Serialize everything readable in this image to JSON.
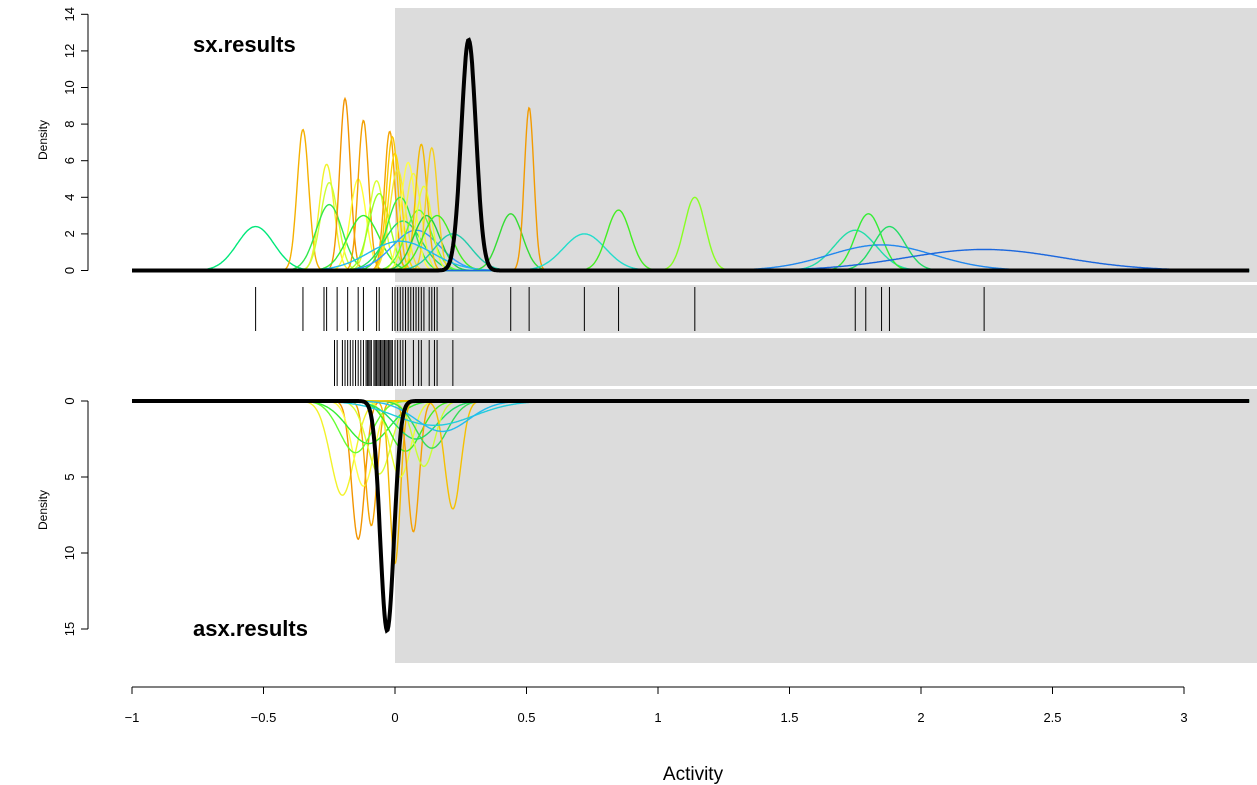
{
  "chart_data": {
    "type": "line",
    "xlabel": "Activity",
    "x_ticks": [
      -1,
      -0.5,
      0,
      0.5,
      1,
      1.5,
      2,
      2.5,
      3
    ],
    "x_tick_labels": [
      "−1",
      "−0.5",
      "0",
      "0.5",
      "1",
      "1.5",
      "2",
      "2.5",
      "3"
    ],
    "xlim": [
      -1,
      3.25
    ],
    "shaded_region_from_x": 0,
    "shade_color": "#dcdcdc",
    "top_panel": {
      "label": "sx.results",
      "ylabel": "Density",
      "ylim": [
        0,
        14
      ],
      "y_ticks": [
        0,
        2,
        4,
        6,
        8,
        10,
        12,
        14
      ],
      "y_tick_labels": [
        "0",
        "2",
        "4",
        "6",
        "8",
        "10",
        "12",
        "14"
      ],
      "rug": [
        -0.53,
        -0.35,
        -0.27,
        -0.26,
        -0.22,
        -0.18,
        -0.14,
        -0.12,
        -0.07,
        -0.06,
        -0.01,
        0.0,
        0.01,
        0.02,
        0.03,
        0.04,
        0.05,
        0.06,
        0.07,
        0.08,
        0.09,
        0.1,
        0.11,
        0.13,
        0.14,
        0.15,
        0.16,
        0.22,
        0.44,
        0.51,
        0.72,
        0.85,
        1.14,
        1.75,
        1.79,
        1.85,
        1.88,
        2.24
      ],
      "overall": {
        "mean": 0.28,
        "peak": 12.6,
        "sd": 0.028,
        "color": "#000000"
      },
      "curves": [
        {
          "mean": -0.53,
          "peak": 2.4,
          "sd": 0.07,
          "color": "#00e87a"
        },
        {
          "mean": -0.35,
          "peak": 7.7,
          "sd": 0.022,
          "color": "#f5b000"
        },
        {
          "mean": -0.26,
          "peak": 5.8,
          "sd": 0.028,
          "color": "#f2f22a"
        },
        {
          "mean": -0.25,
          "peak": 4.8,
          "sd": 0.033,
          "color": "#ccff33"
        },
        {
          "mean": -0.25,
          "peak": 3.6,
          "sd": 0.05,
          "color": "#33e84d"
        },
        {
          "mean": -0.19,
          "peak": 9.4,
          "sd": 0.02,
          "color": "#f29500"
        },
        {
          "mean": -0.14,
          "peak": 5.0,
          "sd": 0.03,
          "color": "#ffff33"
        },
        {
          "mean": -0.12,
          "peak": 8.2,
          "sd": 0.02,
          "color": "#f2a000"
        },
        {
          "mean": -0.07,
          "peak": 4.9,
          "sd": 0.03,
          "color": "#d9ff33"
        },
        {
          "mean": -0.06,
          "peak": 4.2,
          "sd": 0.04,
          "color": "#99ff22"
        },
        {
          "mean": -0.12,
          "peak": 3.0,
          "sd": 0.06,
          "color": "#33ee33"
        },
        {
          "mean": -0.02,
          "peak": 7.6,
          "sd": 0.02,
          "color": "#f5a300"
        },
        {
          "mean": -0.01,
          "peak": 7.3,
          "sd": 0.022,
          "color": "#f8c800"
        },
        {
          "mean": 0.0,
          "peak": 6.4,
          "sd": 0.025,
          "color": "#ffd700"
        },
        {
          "mean": 0.01,
          "peak": 5.5,
          "sd": 0.03,
          "color": "#f2e830"
        },
        {
          "mean": 0.02,
          "peak": 4.0,
          "sd": 0.05,
          "color": "#33ee44"
        },
        {
          "mean": 0.03,
          "peak": 2.7,
          "sd": 0.07,
          "color": "#22dd66"
        },
        {
          "mean": 0.05,
          "peak": 5.9,
          "sd": 0.028,
          "color": "#ffff44"
        },
        {
          "mean": 0.07,
          "peak": 5.3,
          "sd": 0.03,
          "color": "#f5f542"
        },
        {
          "mean": 0.08,
          "peak": 2.2,
          "sd": 0.09,
          "color": "#3399ff"
        },
        {
          "mean": 0.09,
          "peak": 3.3,
          "sd": 0.05,
          "color": "#66ff33"
        },
        {
          "mean": 0.1,
          "peak": 6.9,
          "sd": 0.022,
          "color": "#f2b800"
        },
        {
          "mean": 0.11,
          "peak": 4.6,
          "sd": 0.03,
          "color": "#eaff33"
        },
        {
          "mean": 0.12,
          "peak": 3.0,
          "sd": 0.05,
          "color": "#22cc44"
        },
        {
          "mean": 0.14,
          "peak": 6.7,
          "sd": 0.022,
          "color": "#f5d020"
        },
        {
          "mean": 0.16,
          "peak": 3.0,
          "sd": 0.055,
          "color": "#44ee22"
        },
        {
          "mean": 0.22,
          "peak": 2.0,
          "sd": 0.07,
          "color": "#22ccaa"
        },
        {
          "mean": 0.02,
          "peak": 1.6,
          "sd": 0.12,
          "color": "#22bbee"
        },
        {
          "mean": 0.44,
          "peak": 3.1,
          "sd": 0.045,
          "color": "#33dd33"
        },
        {
          "mean": 0.51,
          "peak": 8.9,
          "sd": 0.018,
          "color": "#f29b00"
        },
        {
          "mean": 0.72,
          "peak": 2.0,
          "sd": 0.08,
          "color": "#22ddcc"
        },
        {
          "mean": 0.85,
          "peak": 3.3,
          "sd": 0.045,
          "color": "#44ee22"
        },
        {
          "mean": 1.14,
          "peak": 4.0,
          "sd": 0.04,
          "color": "#88ff22"
        },
        {
          "mean": 1.75,
          "peak": 2.2,
          "sd": 0.08,
          "color": "#22ddaa"
        },
        {
          "mean": 1.8,
          "peak": 3.1,
          "sd": 0.05,
          "color": "#33ee33"
        },
        {
          "mean": 1.85,
          "peak": 1.4,
          "sd": 0.2,
          "color": "#2288ee"
        },
        {
          "mean": 1.88,
          "peak": 2.4,
          "sd": 0.06,
          "color": "#22dd66"
        },
        {
          "mean": 2.24,
          "peak": 1.15,
          "sd": 0.3,
          "color": "#1a66dd"
        }
      ]
    },
    "bottom_panel": {
      "label": "asx.results",
      "ylabel": "Density",
      "ylim": [
        0,
        15
      ],
      "y_ticks": [
        0,
        5,
        10,
        15
      ],
      "y_tick_labels": [
        "0",
        "5",
        "10",
        "15"
      ],
      "inverted": true,
      "rug": [
        -0.23,
        -0.22,
        -0.2,
        -0.19,
        -0.18,
        -0.17,
        -0.16,
        -0.15,
        -0.14,
        -0.13,
        -0.12,
        -0.11,
        -0.105,
        -0.1,
        -0.095,
        -0.09,
        -0.08,
        -0.075,
        -0.07,
        -0.065,
        -0.06,
        -0.055,
        -0.05,
        -0.045,
        -0.04,
        -0.035,
        -0.03,
        -0.025,
        -0.02,
        -0.015,
        -0.01,
        0.0,
        0.01,
        0.02,
        0.03,
        0.04,
        0.07,
        0.09,
        0.1,
        0.13,
        0.15,
        0.16,
        0.22
      ],
      "overall": {
        "mean": -0.03,
        "peak": 15.1,
        "sd": 0.026,
        "color": "#000000"
      },
      "curves": [
        {
          "mean": -0.2,
          "peak": 6.2,
          "sd": 0.045,
          "color": "#f2f22a"
        },
        {
          "mean": -0.14,
          "peak": 9.1,
          "sd": 0.025,
          "color": "#f29500"
        },
        {
          "mean": -0.12,
          "peak": 5.6,
          "sd": 0.04,
          "color": "#ffff44"
        },
        {
          "mean": -0.09,
          "peak": 8.2,
          "sd": 0.022,
          "color": "#f5a300"
        },
        {
          "mean": -0.06,
          "peak": 4.8,
          "sd": 0.045,
          "color": "#d9ff33"
        },
        {
          "mean": -0.1,
          "peak": 2.8,
          "sd": 0.08,
          "color": "#33ee33"
        },
        {
          "mean": -0.15,
          "peak": 3.4,
          "sd": 0.06,
          "color": "#66ff33"
        },
        {
          "mean": 0.0,
          "peak": 10.7,
          "sd": 0.02,
          "color": "#f2b800"
        },
        {
          "mean": 0.02,
          "peak": 5.0,
          "sd": 0.04,
          "color": "#eaff33"
        },
        {
          "mean": 0.04,
          "peak": 3.3,
          "sd": 0.06,
          "color": "#44ee22"
        },
        {
          "mean": 0.07,
          "peak": 8.6,
          "sd": 0.022,
          "color": "#f5a000"
        },
        {
          "mean": 0.08,
          "peak": 2.5,
          "sd": 0.08,
          "color": "#22dd66"
        },
        {
          "mean": 0.11,
          "peak": 4.3,
          "sd": 0.04,
          "color": "#ccff33"
        },
        {
          "mean": 0.14,
          "peak": 3.1,
          "sd": 0.06,
          "color": "#33dd55"
        },
        {
          "mean": 0.22,
          "peak": 7.1,
          "sd": 0.03,
          "color": "#f5c000"
        },
        {
          "mean": 0.15,
          "peak": 1.6,
          "sd": 0.15,
          "color": "#22ccdd"
        },
        {
          "mean": 0.18,
          "peak": 2.0,
          "sd": 0.1,
          "color": "#22bbee"
        }
      ]
    }
  }
}
